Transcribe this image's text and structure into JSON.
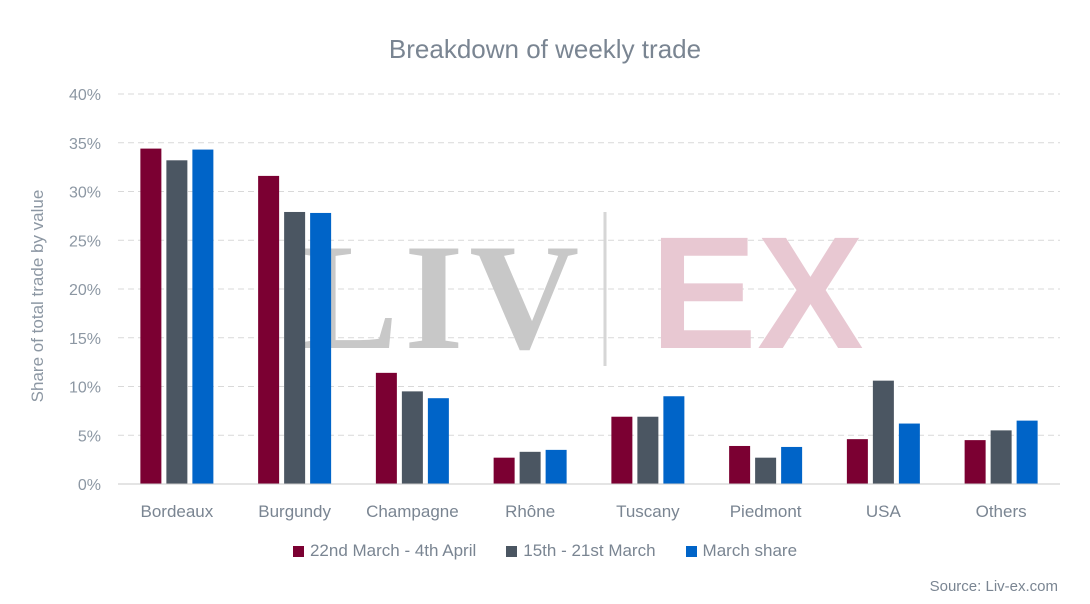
{
  "chart_data": {
    "type": "bar",
    "title": "Breakdown of weekly trade",
    "xlabel": "",
    "ylabel": "Share of total trade by value",
    "ylim": [
      0,
      40
    ],
    "yticks": [
      "0%",
      "5%",
      "10%",
      "15%",
      "20%",
      "25%",
      "30%",
      "35%",
      "40%"
    ],
    "grid": true,
    "legend_position": "bottom",
    "categories": [
      "Bordeaux",
      "Burgundy",
      "Champagne",
      "Rhône",
      "Tuscany",
      "Piedmont",
      "USA",
      "Others"
    ],
    "series": [
      {
        "name": "22nd March - 4th April",
        "color": "#7b0032",
        "values": [
          34.4,
          31.6,
          11.4,
          2.7,
          6.9,
          3.9,
          4.6,
          4.5
        ]
      },
      {
        "name": "15th - 21st March",
        "color": "#4b5662",
        "values": [
          33.2,
          27.9,
          9.5,
          3.3,
          6.9,
          2.7,
          10.6,
          5.5
        ]
      },
      {
        "name": "March share",
        "color": "#0064c8",
        "values": [
          34.3,
          27.8,
          8.8,
          3.5,
          9.0,
          3.8,
          6.2,
          6.5
        ]
      }
    ]
  },
  "watermark": {
    "left_text": "LIV",
    "right_text": "EX"
  },
  "source": "Source: Liv-ex.com"
}
